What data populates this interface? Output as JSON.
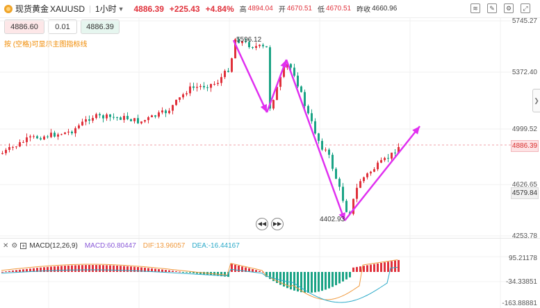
{
  "header": {
    "title": "现货黄金",
    "symbol": "XAUUSD",
    "interval": "1小时",
    "price": "4886.39",
    "change": "+225.43",
    "change_pct": "+4.84%",
    "high_label": "高",
    "high": "4894.04",
    "open_label": "开",
    "open": "4670.51",
    "low_label": "低",
    "low": "4670.51",
    "prev_label": "昨收",
    "prev": "4660.96"
  },
  "order": {
    "sell": "4886.60",
    "qty": "0.01",
    "buy": "4886.39"
  },
  "hint": "按 (空格)可显示主图指标线",
  "axis": {
    "ticks": [
      "5745.27",
      "5372.40",
      "4999.52",
      "4626.65",
      "4253.78"
    ],
    "current_price": "4886.39",
    "ref_price": "4579.84"
  },
  "annotations": {
    "high": "5596.12",
    "low": "4402.93"
  },
  "macd": {
    "name": "MACD(12,26,9)",
    "macd": "MACD:60.80447",
    "dif": "DIF:13.96057",
    "dea": "DEA:-16.44167",
    "ticks": [
      "95.21178",
      "-34.33851",
      "-163.88881"
    ]
  },
  "colors": {
    "up": "#e0313b",
    "down": "#1aa385",
    "arrow": "#e030f0"
  },
  "chart_data": {
    "type": "candlestick",
    "ylim": [
      4253.78,
      5745.27
    ],
    "annotated_high": 5596.12,
    "annotated_low": 4402.93,
    "last_price": 4886.39
  }
}
